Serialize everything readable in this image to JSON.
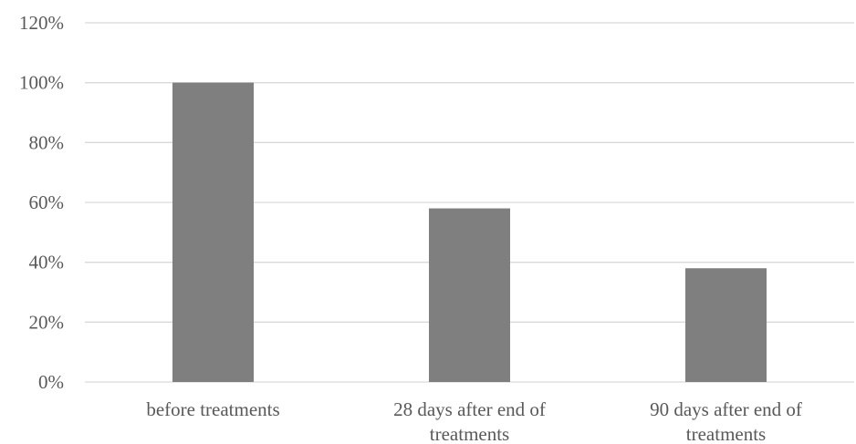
{
  "chart_data": {
    "type": "bar",
    "categories": [
      [
        "before treatments"
      ],
      [
        "28 days after end of",
        "treatments"
      ],
      [
        "90 days after end of",
        "treatments"
      ]
    ],
    "values": [
      100,
      58,
      38
    ],
    "value_unit": "%",
    "ylim": [
      0,
      120
    ],
    "y_ticks": [
      "0%",
      "20%",
      "40%",
      "60%",
      "80%",
      "100%",
      "120%"
    ],
    "title": "",
    "xlabel": "",
    "ylabel": "",
    "grid": true,
    "legend": "none",
    "bar_color": "#7f7f7f",
    "grid_color": "#d9d9d9",
    "text_color": "#595959"
  }
}
